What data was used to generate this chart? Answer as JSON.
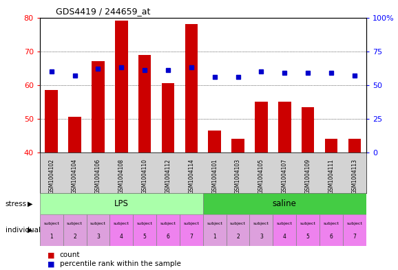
{
  "title": "GDS4419 / 244659_at",
  "samples": [
    "GSM1004102",
    "GSM1004104",
    "GSM1004106",
    "GSM1004108",
    "GSM1004110",
    "GSM1004112",
    "GSM1004114",
    "GSM1004101",
    "GSM1004103",
    "GSM1004105",
    "GSM1004107",
    "GSM1004109",
    "GSM1004111",
    "GSM1004113"
  ],
  "counts": [
    58.5,
    50.5,
    67.0,
    79.0,
    69.0,
    60.5,
    78.0,
    46.5,
    44.0,
    55.0,
    55.0,
    53.5,
    44.0,
    44.0
  ],
  "percentiles": [
    60,
    57,
    62,
    63,
    61,
    61,
    63,
    56,
    56,
    60,
    59,
    59,
    59,
    57
  ],
  "ylim_left": [
    40,
    80
  ],
  "ylim_right": [
    0,
    100
  ],
  "yticks_left": [
    40,
    50,
    60,
    70,
    80
  ],
  "yticks_right": [
    0,
    25,
    50,
    75,
    100
  ],
  "ytick_labels_right": [
    "0",
    "25",
    "50",
    "75",
    "100%"
  ],
  "bar_color": "#cc0000",
  "dot_color": "#0000cc",
  "stress_groups": [
    {
      "label": "LPS",
      "start": 0,
      "end": 7,
      "color": "#aaffaa"
    },
    {
      "label": "saline",
      "start": 7,
      "end": 14,
      "color": "#44cc44"
    }
  ],
  "ind_colors_light": "#dda0dd",
  "ind_colors_dark": "#ee82ee",
  "ind_dark_indices": [
    3,
    4,
    5,
    6,
    10,
    11,
    12,
    13
  ],
  "individual_labels_top": [
    "subject",
    "subject",
    "subject",
    "subject",
    "subject",
    "subject",
    "subject",
    "subject",
    "subject",
    "subject",
    "subject",
    "subject",
    "subject",
    "subject"
  ],
  "individual_labels_bot": [
    "1",
    "2",
    "3",
    "4",
    "5",
    "6",
    "7",
    "1",
    "2",
    "3",
    "4",
    "5",
    "6",
    "7"
  ],
  "stress_label": "stress",
  "individual_label": "individual",
  "legend_count": "count",
  "legend_percentile": "percentile rank within the sample",
  "bar_bottom": 40,
  "dot_percentile_min": 0,
  "dot_percentile_max": 100
}
